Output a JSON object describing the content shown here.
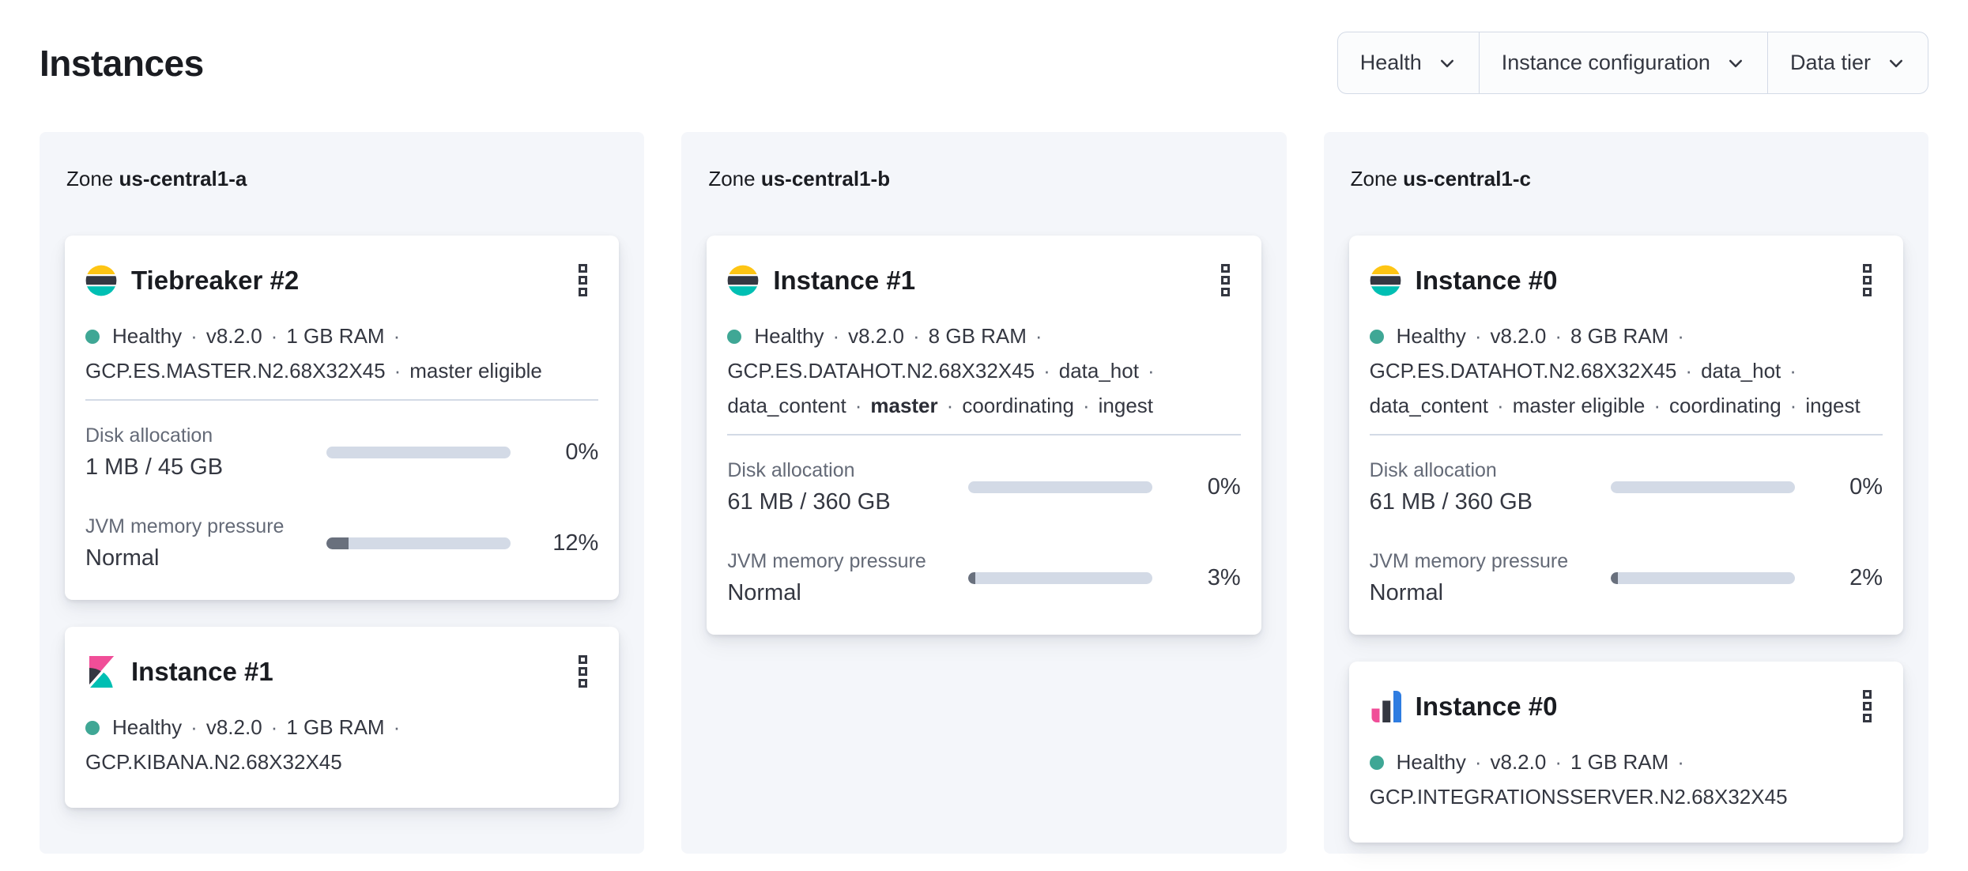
{
  "colors": {
    "page_bg": "#FFFFFF",
    "panel_bg": "#F4F6FA",
    "card_bg": "#FFFFFF",
    "border": "#D3DAE6",
    "text_dark": "#343741",
    "title_dark": "#1A1C21",
    "label_gray": "#646A77",
    "bar_track": "#D3DAE6",
    "bar_fill": "#69707D",
    "healthy_dot": "#3FA795",
    "logo_yellow": "#FEC514",
    "logo_teal": "#00BFB3",
    "logo_dark": "#343741",
    "logo_pink": "#F04E98",
    "logo_blue": "#2F7DE1"
  },
  "page": {
    "title": "Instances"
  },
  "separator": "·",
  "filters": [
    {
      "label": "Health"
    },
    {
      "label": "Instance configuration"
    },
    {
      "label": "Data tier"
    }
  ],
  "zones": [
    {
      "label_prefix": "Zone",
      "name": "us-central1-a",
      "cards": [
        {
          "product": "elasticsearch",
          "title": "Tiebreaker #2",
          "status": "Healthy",
          "meta_lines": [
            {
              "dot": true,
              "trailing_sep": true,
              "segments": [
                {
                  "text": "Healthy"
                },
                {
                  "text": "v8.2.0"
                },
                {
                  "text": "1 GB RAM"
                }
              ]
            },
            {
              "dot": false,
              "trailing_sep": false,
              "segments": [
                {
                  "text": "GCP.ES.MASTER.N2.68X32X45"
                },
                {
                  "text": "master eligible"
                }
              ]
            }
          ],
          "metrics": [
            {
              "label": "Disk allocation",
              "value": "1 MB / 45 GB",
              "percent": 0,
              "percent_label": "0%"
            },
            {
              "label": "JVM memory pressure",
              "value": "Normal",
              "percent": 12,
              "percent_label": "12%"
            }
          ]
        },
        {
          "product": "kibana",
          "title": "Instance #1",
          "status": "Healthy",
          "meta_lines": [
            {
              "dot": true,
              "trailing_sep": true,
              "segments": [
                {
                  "text": "Healthy"
                },
                {
                  "text": "v8.2.0"
                },
                {
                  "text": "1 GB RAM"
                }
              ]
            },
            {
              "dot": false,
              "trailing_sep": false,
              "segments": [
                {
                  "text": "GCP.KIBANA.N2.68X32X45"
                }
              ]
            }
          ],
          "metrics": []
        }
      ]
    },
    {
      "label_prefix": "Zone",
      "name": "us-central1-b",
      "cards": [
        {
          "product": "elasticsearch",
          "title": "Instance #1",
          "status": "Healthy",
          "meta_lines": [
            {
              "dot": true,
              "trailing_sep": true,
              "segments": [
                {
                  "text": "Healthy"
                },
                {
                  "text": "v8.2.0"
                },
                {
                  "text": "8 GB RAM"
                }
              ]
            },
            {
              "dot": false,
              "trailing_sep": true,
              "segments": [
                {
                  "text": "GCP.ES.DATAHOT.N2.68X32X45"
                },
                {
                  "text": "data_hot"
                }
              ]
            },
            {
              "dot": false,
              "trailing_sep": false,
              "segments": [
                {
                  "text": "data_content"
                },
                {
                  "text": "master",
                  "bold": true
                },
                {
                  "text": "coordinating"
                },
                {
                  "text": "ingest"
                }
              ]
            }
          ],
          "metrics": [
            {
              "label": "Disk allocation",
              "value": "61 MB / 360 GB",
              "percent": 0,
              "percent_label": "0%"
            },
            {
              "label": "JVM memory pressure",
              "value": "Normal",
              "percent": 3,
              "percent_label": "3%"
            }
          ]
        }
      ]
    },
    {
      "label_prefix": "Zone",
      "name": "us-central1-c",
      "cards": [
        {
          "product": "elasticsearch",
          "title": "Instance #0",
          "status": "Healthy",
          "meta_lines": [
            {
              "dot": true,
              "trailing_sep": true,
              "segments": [
                {
                  "text": "Healthy"
                },
                {
                  "text": "v8.2.0"
                },
                {
                  "text": "8 GB RAM"
                }
              ]
            },
            {
              "dot": false,
              "trailing_sep": true,
              "segments": [
                {
                  "text": "GCP.ES.DATAHOT.N2.68X32X45"
                },
                {
                  "text": "data_hot"
                }
              ]
            },
            {
              "dot": false,
              "trailing_sep": false,
              "segments": [
                {
                  "text": "data_content"
                },
                {
                  "text": "master eligible"
                },
                {
                  "text": "coordinating"
                },
                {
                  "text": "ingest"
                }
              ]
            }
          ],
          "metrics": [
            {
              "label": "Disk allocation",
              "value": "61 MB / 360 GB",
              "percent": 0,
              "percent_label": "0%"
            },
            {
              "label": "JVM memory pressure",
              "value": "Normal",
              "percent": 2,
              "percent_label": "2%"
            }
          ]
        },
        {
          "product": "integrations_server",
          "title": "Instance #0",
          "status": "Healthy",
          "meta_lines": [
            {
              "dot": true,
              "trailing_sep": true,
              "segments": [
                {
                  "text": "Healthy"
                },
                {
                  "text": "v8.2.0"
                },
                {
                  "text": "1 GB RAM"
                }
              ]
            },
            {
              "dot": false,
              "trailing_sep": false,
              "segments": [
                {
                  "text": "GCP.INTEGRATIONSSERVER.N2.68X32X45"
                }
              ]
            }
          ],
          "metrics": []
        }
      ]
    }
  ]
}
